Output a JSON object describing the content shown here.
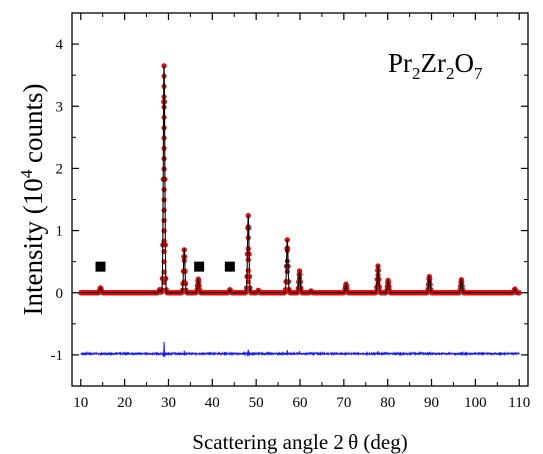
{
  "chart_data": {
    "type": "line",
    "title": "",
    "compound_label": {
      "parts": [
        {
          "t": "Pr",
          "sub": false
        },
        {
          "t": "2",
          "sub": true
        },
        {
          "t": "Zr",
          "sub": false
        },
        {
          "t": "2",
          "sub": true
        },
        {
          "t": "O",
          "sub": false
        },
        {
          "t": "7",
          "sub": true
        }
      ]
    },
    "xlabel": "Scattering angle 2 θ (deg)",
    "ylabel": {
      "before": "Intensity (10",
      "sup": "4",
      "after": " counts)"
    },
    "xlim": [
      8,
      112
    ],
    "ylim": [
      -1.5,
      4.5
    ],
    "xticks": [
      10,
      20,
      30,
      40,
      50,
      60,
      70,
      80,
      90,
      100,
      110
    ],
    "yticks": [
      -1,
      0,
      1,
      2,
      3,
      4
    ],
    "grid": false,
    "colors": {
      "observed": "#dd1111",
      "calculated": "#000000",
      "difference": "#1a1aff",
      "markers": "#000000"
    },
    "peaks": [
      {
        "x": 14.5,
        "y": 0.08
      },
      {
        "x": 28.0,
        "y": 0.05
      },
      {
        "x": 29.0,
        "y": 3.65
      },
      {
        "x": 33.6,
        "y": 0.69
      },
      {
        "x": 36.8,
        "y": 0.22
      },
      {
        "x": 44.0,
        "y": 0.05
      },
      {
        "x": 48.2,
        "y": 1.24
      },
      {
        "x": 50.5,
        "y": 0.04
      },
      {
        "x": 57.1,
        "y": 0.85
      },
      {
        "x": 59.9,
        "y": 0.35
      },
      {
        "x": 62.5,
        "y": 0.03
      },
      {
        "x": 70.5,
        "y": 0.14
      },
      {
        "x": 77.8,
        "y": 0.43
      },
      {
        "x": 80.1,
        "y": 0.2
      },
      {
        "x": 89.5,
        "y": 0.26
      },
      {
        "x": 96.8,
        "y": 0.21
      },
      {
        "x": 109.0,
        "y": 0.06
      }
    ],
    "impurity_markers": [
      {
        "x": 14.5,
        "y": 0.42
      },
      {
        "x": 37.0,
        "y": 0.42
      },
      {
        "x": 44.0,
        "y": 0.42
      }
    ],
    "difference_offset": -0.98,
    "difference_spikes": [
      {
        "x": 29.0,
        "dy": 0.18
      },
      {
        "x": 33.6,
        "dy": 0.05
      },
      {
        "x": 48.2,
        "dy": 0.07
      },
      {
        "x": 57.1,
        "dy": 0.05
      },
      {
        "x": 59.9,
        "dy": 0.03
      },
      {
        "x": 77.8,
        "dy": 0.03
      },
      {
        "x": 89.5,
        "dy": 0.02
      },
      {
        "x": 96.8,
        "dy": 0.02
      }
    ]
  }
}
